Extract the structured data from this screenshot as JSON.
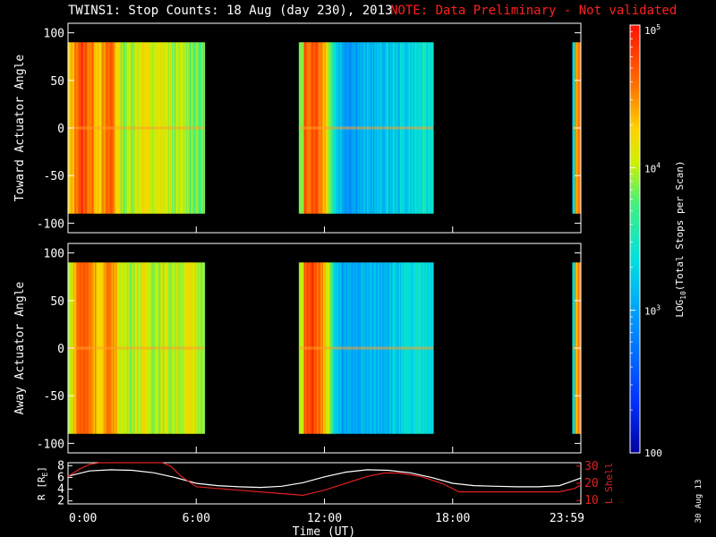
{
  "title": "TWINS1: Stop Counts: 18 Aug (day 230), 2013",
  "note": "NOTE: Data Preliminary - Not validated",
  "colors": {
    "note": "#ff2020",
    "lshell": "#e02020",
    "radius": "#ffffff",
    "background": "#000000"
  },
  "colorbar": {
    "label": "LOG10(Total Stops per Scan)",
    "label_main": "LOG",
    "label_sub": "10",
    "label_rest": "(Total Stops per Scan)",
    "ticks": [
      "10^5",
      "10^4",
      "10^3",
      "100"
    ],
    "scale": "log",
    "range": [
      100,
      100000
    ],
    "palette": "rainbow (blue low → red high)"
  },
  "stamp": "30 Aug 13",
  "chart_data": [
    {
      "type": "heatmap",
      "ylabel": "Toward Actuator Angle",
      "ylim": [
        -110,
        110
      ],
      "yticks": [
        "100",
        "50",
        "0",
        "-50",
        "-100"
      ],
      "ytick_values": [
        100,
        50,
        0,
        -50,
        -100
      ],
      "angle_range": [
        -90,
        90
      ],
      "data_intervals_hours": [
        [
          0.0,
          6.4
        ],
        [
          10.8,
          17.1
        ],
        [
          23.6,
          24.0
        ]
      ],
      "profile": [
        {
          "t": 0.0,
          "v": 4.1
        },
        {
          "t": 0.5,
          "v": 4.8
        },
        {
          "t": 1.0,
          "v": 4.6
        },
        {
          "t": 1.5,
          "v": 4.3
        },
        {
          "t": 2.0,
          "v": 4.7
        },
        {
          "t": 2.5,
          "v": 3.9
        },
        {
          "t": 3.0,
          "v": 4.0
        },
        {
          "t": 3.5,
          "v": 4.2
        },
        {
          "t": 4.0,
          "v": 4.0
        },
        {
          "t": 4.5,
          "v": 4.1
        },
        {
          "t": 5.0,
          "v": 3.9
        },
        {
          "t": 5.5,
          "v": 4.0
        },
        {
          "t": 6.0,
          "v": 3.8
        },
        {
          "t": 11.0,
          "v": 4.6
        },
        {
          "t": 11.5,
          "v": 4.8
        },
        {
          "t": 12.0,
          "v": 4.4
        },
        {
          "t": 12.5,
          "v": 3.3
        },
        {
          "t": 13.0,
          "v": 3.0
        },
        {
          "t": 14.0,
          "v": 3.1
        },
        {
          "t": 15.0,
          "v": 3.2
        },
        {
          "t": 16.0,
          "v": 3.3
        },
        {
          "t": 17.0,
          "v": 3.4
        },
        {
          "t": 23.7,
          "v": 4.6
        },
        {
          "t": 23.9,
          "v": 4.4
        }
      ]
    },
    {
      "type": "heatmap",
      "ylabel": "Away Actuator Angle",
      "ylim": [
        -110,
        110
      ],
      "yticks": [
        "100",
        "50",
        "0",
        "-50",
        "-100"
      ],
      "ytick_values": [
        100,
        50,
        0,
        -50,
        -100
      ],
      "angle_range": [
        -90,
        90
      ],
      "data_intervals_hours": [
        [
          0.0,
          6.4
        ],
        [
          10.8,
          17.1
        ],
        [
          23.6,
          24.0
        ]
      ],
      "profile": [
        {
          "t": 0.0,
          "v": 3.9
        },
        {
          "t": 0.5,
          "v": 4.7
        },
        {
          "t": 1.0,
          "v": 4.6
        },
        {
          "t": 1.5,
          "v": 4.2
        },
        {
          "t": 2.0,
          "v": 4.6
        },
        {
          "t": 2.5,
          "v": 4.0
        },
        {
          "t": 3.0,
          "v": 4.0
        },
        {
          "t": 3.5,
          "v": 4.1
        },
        {
          "t": 4.0,
          "v": 4.0
        },
        {
          "t": 4.5,
          "v": 4.0
        },
        {
          "t": 5.0,
          "v": 4.0
        },
        {
          "t": 5.5,
          "v": 4.1
        },
        {
          "t": 6.0,
          "v": 4.0
        },
        {
          "t": 11.0,
          "v": 4.6
        },
        {
          "t": 11.5,
          "v": 4.8
        },
        {
          "t": 12.0,
          "v": 4.3
        },
        {
          "t": 12.5,
          "v": 3.2
        },
        {
          "t": 13.0,
          "v": 3.0
        },
        {
          "t": 14.0,
          "v": 3.1
        },
        {
          "t": 15.0,
          "v": 3.2
        },
        {
          "t": 16.0,
          "v": 3.3
        },
        {
          "t": 17.0,
          "v": 3.4
        },
        {
          "t": 23.7,
          "v": 4.5
        },
        {
          "t": 23.9,
          "v": 4.4
        }
      ]
    },
    {
      "type": "line",
      "ylabel": "R [RE]",
      "ylabel_main": "R [R",
      "ylabel_sub": "E",
      "ylabel_end": "]",
      "ylim": [
        1.5,
        8.5
      ],
      "yticks": [
        "8",
        "6",
        "4",
        "2"
      ],
      "ytick_values": [
        8,
        6,
        4,
        2
      ],
      "y2label": "L Shell",
      "y2lim": [
        8,
        32
      ],
      "y2ticks": [
        "30",
        "20",
        "10"
      ],
      "y2tick_values": [
        30,
        20,
        10
      ],
      "xlabel": "Time (UT)",
      "xlim": [
        0,
        24
      ],
      "xticks": [
        "0:00",
        "6:00",
        "12:00",
        "18:00",
        "23:59"
      ],
      "xtick_values": [
        0,
        6,
        12,
        18,
        24
      ],
      "series": [
        {
          "name": "R",
          "axis": "left",
          "x": [
            0,
            1,
            2,
            3,
            4,
            5,
            6,
            7,
            8,
            9,
            10,
            11,
            12,
            13,
            14,
            15,
            16,
            17,
            18,
            19,
            20,
            21,
            22,
            23,
            24
          ],
          "y": [
            6.2,
            7.1,
            7.3,
            7.2,
            6.8,
            6.0,
            5.0,
            4.6,
            4.4,
            4.3,
            4.5,
            5.1,
            6.1,
            6.9,
            7.3,
            7.2,
            6.8,
            6.0,
            5.0,
            4.6,
            4.5,
            4.4,
            4.4,
            4.6,
            5.9
          ]
        },
        {
          "name": "L Shell",
          "axis": "right",
          "x": [
            0,
            0.5,
            1,
            1.5,
            4.4,
            4.8,
            5.3,
            6.0,
            7.0,
            8.0,
            9.0,
            10.0,
            11.0,
            12.0,
            13.0,
            14.0,
            14.8,
            15.5,
            16.5,
            17.5,
            18.3,
            19.0,
            20.0,
            21.0,
            22.0,
            23.0,
            23.7,
            24.0
          ],
          "y": [
            24,
            28,
            31,
            32,
            32,
            30,
            24,
            18,
            17,
            16,
            15,
            14,
            13,
            16,
            20,
            24,
            26,
            26,
            24,
            20,
            15,
            15,
            15,
            15,
            15,
            15,
            17,
            19
          ]
        }
      ]
    }
  ]
}
